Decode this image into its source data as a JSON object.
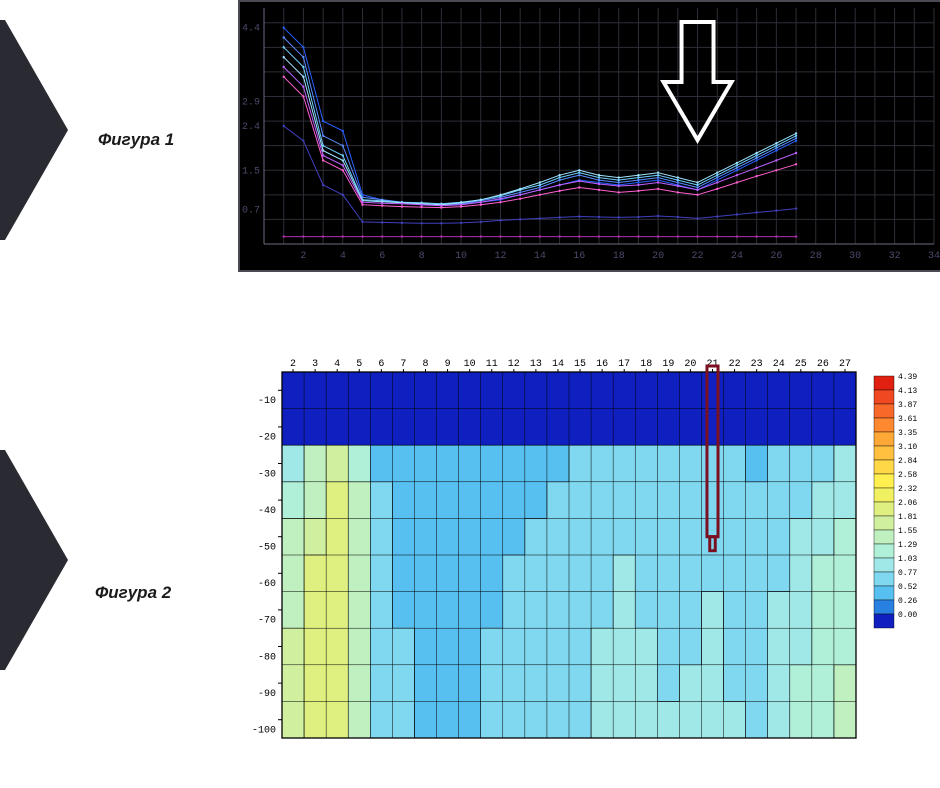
{
  "labels": {
    "figure1": "Фигура 1",
    "figure2": "Фигура 2"
  },
  "pointer": {
    "fill": "#2a2a32"
  },
  "line_chart": {
    "type": "line",
    "background_color": "#000000",
    "grid_color": "#2e2e38",
    "axis_color": "#6b6b80",
    "tick_color": "#4a4a6a",
    "tick_font_size": 10,
    "xlim": [
      0,
      34
    ],
    "ylim": [
      0,
      4.8
    ],
    "x_ticks": [
      2,
      4,
      6,
      8,
      10,
      12,
      14,
      16,
      18,
      20,
      22,
      24,
      26,
      28,
      30,
      32,
      34
    ],
    "y_ticks": [
      0.7,
      1.5,
      2.4,
      2.9,
      4.4
    ],
    "arrow": {
      "x": 22,
      "color": "#ffffff",
      "stroke_width": 4
    },
    "series": [
      {
        "color": "#2860ff",
        "width": 1,
        "y": [
          4.4,
          4.0,
          2.5,
          2.3,
          1.0,
          0.9,
          0.85,
          0.8,
          0.8,
          0.82,
          0.85,
          0.9,
          1.0,
          1.1,
          1.2,
          1.3,
          1.25,
          1.2,
          1.25,
          1.3,
          1.2,
          1.1,
          1.3,
          1.5,
          1.7,
          1.9,
          2.1
        ]
      },
      {
        "color": "#5b8cff",
        "width": 1,
        "y": [
          4.2,
          3.8,
          2.2,
          2.0,
          0.95,
          0.9,
          0.85,
          0.82,
          0.8,
          0.82,
          0.88,
          0.95,
          1.05,
          1.15,
          1.3,
          1.4,
          1.3,
          1.25,
          1.3,
          1.35,
          1.25,
          1.15,
          1.35,
          1.55,
          1.75,
          1.95,
          2.15
        ]
      },
      {
        "color": "#6ed0ff",
        "width": 1,
        "y": [
          4.0,
          3.6,
          2.0,
          1.8,
          0.9,
          0.88,
          0.85,
          0.84,
          0.82,
          0.85,
          0.9,
          0.98,
          1.1,
          1.2,
          1.35,
          1.45,
          1.35,
          1.3,
          1.35,
          1.4,
          1.3,
          1.2,
          1.4,
          1.6,
          1.8,
          2.0,
          2.2
        ]
      },
      {
        "color": "#a0e4ff",
        "width": 1,
        "y": [
          3.8,
          3.4,
          1.9,
          1.7,
          0.88,
          0.86,
          0.84,
          0.82,
          0.8,
          0.84,
          0.9,
          1.0,
          1.12,
          1.25,
          1.4,
          1.5,
          1.4,
          1.35,
          1.4,
          1.45,
          1.35,
          1.25,
          1.45,
          1.65,
          1.85,
          2.05,
          2.25
        ]
      },
      {
        "color": "#c060ff",
        "width": 1,
        "y": [
          3.6,
          3.2,
          1.8,
          1.6,
          0.85,
          0.83,
          0.82,
          0.8,
          0.78,
          0.8,
          0.85,
          0.92,
          1.0,
          1.1,
          1.2,
          1.28,
          1.22,
          1.18,
          1.2,
          1.25,
          1.18,
          1.1,
          1.25,
          1.4,
          1.55,
          1.7,
          1.85
        ]
      },
      {
        "color": "#ff60d0",
        "width": 1,
        "y": [
          3.4,
          3.0,
          1.7,
          1.5,
          0.8,
          0.78,
          0.76,
          0.75,
          0.74,
          0.76,
          0.8,
          0.85,
          0.92,
          1.0,
          1.08,
          1.15,
          1.1,
          1.05,
          1.08,
          1.12,
          1.05,
          1.0,
          1.12,
          1.25,
          1.38,
          1.5,
          1.62
        ]
      },
      {
        "color": "#4040c0",
        "width": 1,
        "y": [
          2.4,
          2.1,
          1.2,
          1.0,
          0.45,
          0.44,
          0.43,
          0.42,
          0.42,
          0.43,
          0.45,
          0.48,
          0.5,
          0.52,
          0.54,
          0.56,
          0.55,
          0.54,
          0.55,
          0.57,
          0.55,
          0.52,
          0.56,
          0.6,
          0.64,
          0.68,
          0.72
        ]
      },
      {
        "color": "#b030b0",
        "width": 1,
        "y": [
          0.15,
          0.15,
          0.15,
          0.15,
          0.15,
          0.15,
          0.15,
          0.15,
          0.15,
          0.15,
          0.15,
          0.15,
          0.15,
          0.15,
          0.15,
          0.15,
          0.15,
          0.15,
          0.15,
          0.15,
          0.15,
          0.15,
          0.15,
          0.15,
          0.15,
          0.15,
          0.15
        ]
      }
    ]
  },
  "contour_chart": {
    "type": "heatmap",
    "background_tint": "#bfe8f0",
    "grid_color": "#000000",
    "tick_font_family": "monospace",
    "tick_font_size": 10,
    "tick_color": "#000000",
    "x_ticks": [
      2,
      3,
      4,
      5,
      6,
      7,
      8,
      9,
      10,
      11,
      12,
      13,
      14,
      15,
      16,
      17,
      18,
      19,
      20,
      21,
      22,
      23,
      24,
      25,
      26,
      27
    ],
    "y_ticks": [
      -10,
      -20,
      -30,
      -40,
      -50,
      -60,
      -70,
      -80,
      -90,
      -100
    ],
    "marker": {
      "x": 21,
      "y_from": 0,
      "y_to": -45,
      "color": "#7a1020",
      "stroke_width": 3
    },
    "legend": {
      "title": "",
      "font_size": 8,
      "entries": [
        {
          "v": "4.39",
          "c": "#e02010"
        },
        {
          "v": "4.13",
          "c": "#f04820"
        },
        {
          "v": "3.87",
          "c": "#f86828"
        },
        {
          "v": "3.61",
          "c": "#ff8830"
        },
        {
          "v": "3.35",
          "c": "#ffa838"
        },
        {
          "v": "3.10",
          "c": "#ffc040"
        },
        {
          "v": "2.84",
          "c": "#ffd848"
        },
        {
          "v": "2.58",
          "c": "#fff050"
        },
        {
          "v": "2.32",
          "c": "#f0f060"
        },
        {
          "v": "2.06",
          "c": "#e0f080"
        },
        {
          "v": "1.81",
          "c": "#d0f0a0"
        },
        {
          "v": "1.55",
          "c": "#c0f0c0"
        },
        {
          "v": "1.29",
          "c": "#b0f0d8"
        },
        {
          "v": "1.03",
          "c": "#a0e8e8"
        },
        {
          "v": "0.77",
          "c": "#80d8f0"
        },
        {
          "v": "0.52",
          "c": "#58c0f0"
        },
        {
          "v": "0.26",
          "c": "#2880e0"
        },
        {
          "v": "0.00",
          "c": "#1020c0"
        }
      ]
    },
    "bands": [
      {
        "level": 0,
        "color": "#1020c0"
      },
      {
        "level": 0.26,
        "color": "#2880e0"
      },
      {
        "level": 0.52,
        "color": "#58c0f0"
      },
      {
        "level": 0.77,
        "color": "#80d8f0"
      },
      {
        "level": 1.03,
        "color": "#a0e8e8"
      },
      {
        "level": 1.29,
        "color": "#b0f0d8"
      },
      {
        "level": 1.55,
        "color": "#c0f0c0"
      },
      {
        "level": 1.81,
        "color": "#d0f0a0"
      },
      {
        "level": 2.06,
        "color": "#e0f080"
      },
      {
        "level": 2.32,
        "color": "#f0f060"
      }
    ],
    "grid_values": [
      [
        0.1,
        0.1,
        0.1,
        0.1,
        0.1,
        0.1,
        0.1,
        0.1,
        0.1,
        0.1,
        0.1,
        0.1,
        0.1,
        0.1,
        0.1,
        0.1,
        0.1,
        0.1,
        0.1,
        0.1,
        0.1,
        0.1,
        0.1,
        0.1,
        0.1,
        0.1
      ],
      [
        0.2,
        0.2,
        0.2,
        0.2,
        0.2,
        0.2,
        0.2,
        0.2,
        0.2,
        0.2,
        0.2,
        0.2,
        0.2,
        0.2,
        0.2,
        0.2,
        0.2,
        0.2,
        0.2,
        0.2,
        0.2,
        0.2,
        0.2,
        0.2,
        0.2,
        0.2
      ],
      [
        1.2,
        1.6,
        2.0,
        1.4,
        0.7,
        0.6,
        0.6,
        0.6,
        0.6,
        0.6,
        0.6,
        0.7,
        0.7,
        0.8,
        0.8,
        0.9,
        0.8,
        0.8,
        0.8,
        0.8,
        0.8,
        0.7,
        0.8,
        0.9,
        1.0,
        1.1
      ],
      [
        1.4,
        1.8,
        2.2,
        1.6,
        0.8,
        0.6,
        0.6,
        0.6,
        0.6,
        0.6,
        0.7,
        0.7,
        0.8,
        0.8,
        0.9,
        1.0,
        0.9,
        0.8,
        0.9,
        0.9,
        0.8,
        0.8,
        0.9,
        1.0,
        1.1,
        1.2
      ],
      [
        1.6,
        2.0,
        2.3,
        1.7,
        0.8,
        0.7,
        0.6,
        0.6,
        0.6,
        0.7,
        0.7,
        0.8,
        0.8,
        0.9,
        1.0,
        1.0,
        0.9,
        0.9,
        0.9,
        1.0,
        0.9,
        0.8,
        1.0,
        1.1,
        1.2,
        1.3
      ],
      [
        1.7,
        2.1,
        2.3,
        1.8,
        0.9,
        0.7,
        0.7,
        0.6,
        0.7,
        0.7,
        0.8,
        0.8,
        0.9,
        0.9,
        1.0,
        1.1,
        1.0,
        0.9,
        1.0,
        1.0,
        0.9,
        0.9,
        1.0,
        1.1,
        1.3,
        1.4
      ],
      [
        1.8,
        2.2,
        2.3,
        1.8,
        0.9,
        0.7,
        0.7,
        0.7,
        0.7,
        0.7,
        0.8,
        0.8,
        0.9,
        1.0,
        1.0,
        1.1,
        1.0,
        1.0,
        1.0,
        1.1,
        1.0,
        0.9,
        1.1,
        1.2,
        1.3,
        1.5
      ],
      [
        1.9,
        2.2,
        2.3,
        1.8,
        0.9,
        0.8,
        0.7,
        0.7,
        0.7,
        0.8,
        0.8,
        0.9,
        0.9,
        1.0,
        1.1,
        1.1,
        1.1,
        1.0,
        1.0,
        1.1,
        1.0,
        1.0,
        1.1,
        1.2,
        1.4,
        1.5
      ],
      [
        1.9,
        2.2,
        2.3,
        1.8,
        0.9,
        0.8,
        0.7,
        0.7,
        0.7,
        0.8,
        0.8,
        0.9,
        1.0,
        1.0,
        1.1,
        1.2,
        1.1,
        1.0,
        1.1,
        1.1,
        1.0,
        1.0,
        1.1,
        1.3,
        1.4,
        1.6
      ],
      [
        2.0,
        2.3,
        2.3,
        1.8,
        0.9,
        0.8,
        0.7,
        0.7,
        0.7,
        0.8,
        0.8,
        0.9,
        1.0,
        1.0,
        1.1,
        1.2,
        1.1,
        1.1,
        1.1,
        1.2,
        1.1,
        1.0,
        1.2,
        1.3,
        1.5,
        1.6
      ]
    ]
  }
}
